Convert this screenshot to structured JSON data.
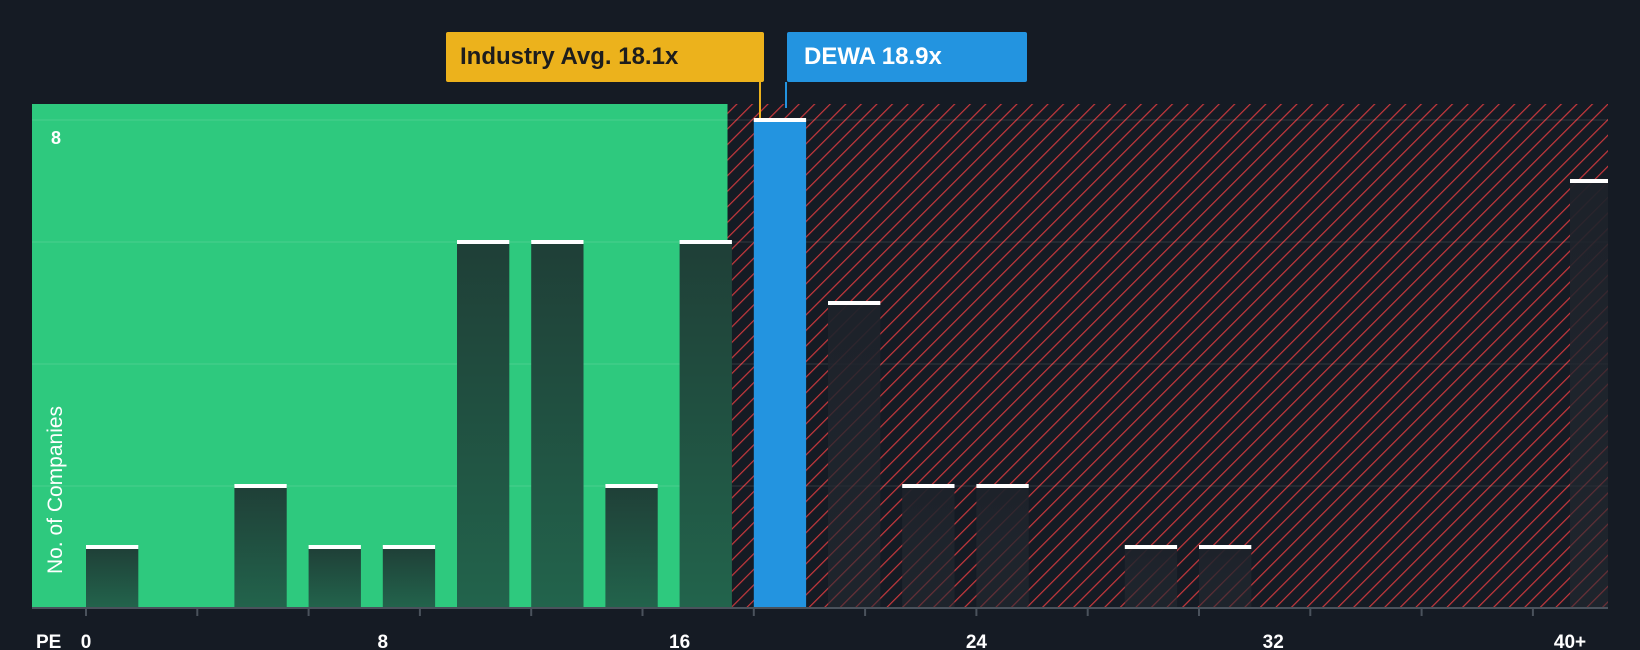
{
  "chart_data": {
    "type": "bar",
    "x_axis_label": "PE",
    "y_axis_label": "No. of Companies",
    "y_tick_label": "8",
    "ylim": [
      0,
      8
    ],
    "bin_width": 1.5,
    "x_ticks": [
      {
        "value": 0,
        "label": "0"
      },
      {
        "value": 8,
        "label": "8"
      },
      {
        "value": 16,
        "label": "16"
      },
      {
        "value": 24,
        "label": "24"
      },
      {
        "value": 32,
        "label": "32"
      },
      {
        "value": 40,
        "label": "40+"
      }
    ],
    "bars": [
      {
        "bin_start": 0,
        "count": 1
      },
      {
        "bin_start": 4,
        "count": 2
      },
      {
        "bin_start": 6,
        "count": 1
      },
      {
        "bin_start": 8,
        "count": 1
      },
      {
        "bin_start": 10,
        "count": 6
      },
      {
        "bin_start": 12,
        "count": 6
      },
      {
        "bin_start": 14,
        "count": 2
      },
      {
        "bin_start": 16,
        "count": 6
      },
      {
        "bin_start": 18,
        "count": 8,
        "highlight": true
      },
      {
        "bin_start": 20,
        "count": 5
      },
      {
        "bin_start": 22,
        "count": 2
      },
      {
        "bin_start": 24,
        "count": 2
      },
      {
        "bin_start": 28,
        "count": 1
      },
      {
        "bin_start": 30,
        "count": 1
      },
      {
        "bin_start": 40,
        "count": 7
      }
    ],
    "industry_avg": {
      "label": "Industry Avg. 18.1x",
      "value": 18.1
    },
    "company": {
      "label": "DEWA 18.9x",
      "value": 18.9
    },
    "colors": {
      "background": "#151b24",
      "good_zone": "#2ec97e",
      "bad_zone": "#c8383d",
      "bar_dark": "#1e4a3d",
      "highlight": "#2394e0",
      "industry_callout": "#ecb21c",
      "company_callout": "#2394e0",
      "bar_cap": "#ffffff"
    }
  }
}
